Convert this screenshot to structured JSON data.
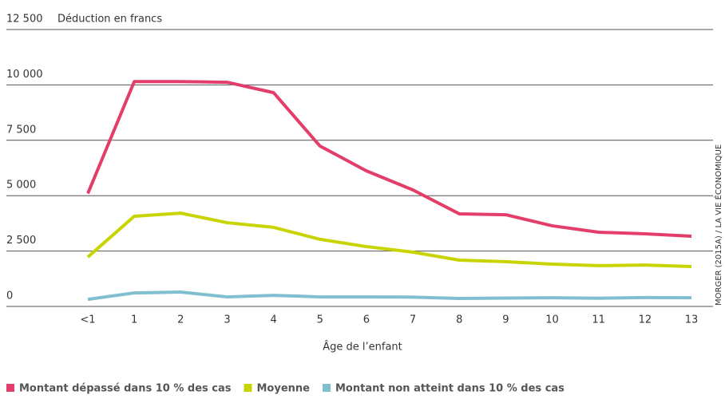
{
  "chart_data": {
    "type": "line",
    "y_label": "Déduction en francs",
    "x_label": "Âge de l’enfant",
    "source": "MORGER (2015A) / LA VIE ÉCONOMIQUE",
    "categories": [
      "<1",
      "1",
      "2",
      "3",
      "4",
      "5",
      "6",
      "7",
      "8",
      "9",
      "10",
      "11",
      "12",
      "13"
    ],
    "series": [
      {
        "name": "Montant dépassé dans 10 % des cas",
        "color": "#e33d6a",
        "values": [
          5100,
          10150,
          10150,
          10120,
          9650,
          7240,
          6120,
          5260,
          4180,
          4140,
          3640,
          3350,
          3280,
          3170
        ]
      },
      {
        "name": "Moyenne",
        "color": "#c8d400",
        "values": [
          2230,
          4070,
          4210,
          3780,
          3570,
          3030,
          2700,
          2450,
          2090,
          2020,
          1910,
          1840,
          1870,
          1800
        ]
      },
      {
        "name": "Montant non atteint dans 10 % des cas",
        "color": "#7fbfcf",
        "values": [
          320,
          610,
          650,
          430,
          500,
          430,
          430,
          420,
          360,
          380,
          390,
          370,
          400,
          390
        ]
      }
    ],
    "ylim": [
      0,
      12500
    ],
    "yticks": [
      0,
      {
        "value": 2500,
        "label": "2 500"
      },
      {
        "value": 5000,
        "label": "5 000"
      },
      {
        "value": 7500,
        "label": "7 500"
      },
      {
        "value": 10000,
        "label": "10 000"
      },
      {
        "value": 12500,
        "label": "12 500"
      }
    ],
    "grid": true
  }
}
